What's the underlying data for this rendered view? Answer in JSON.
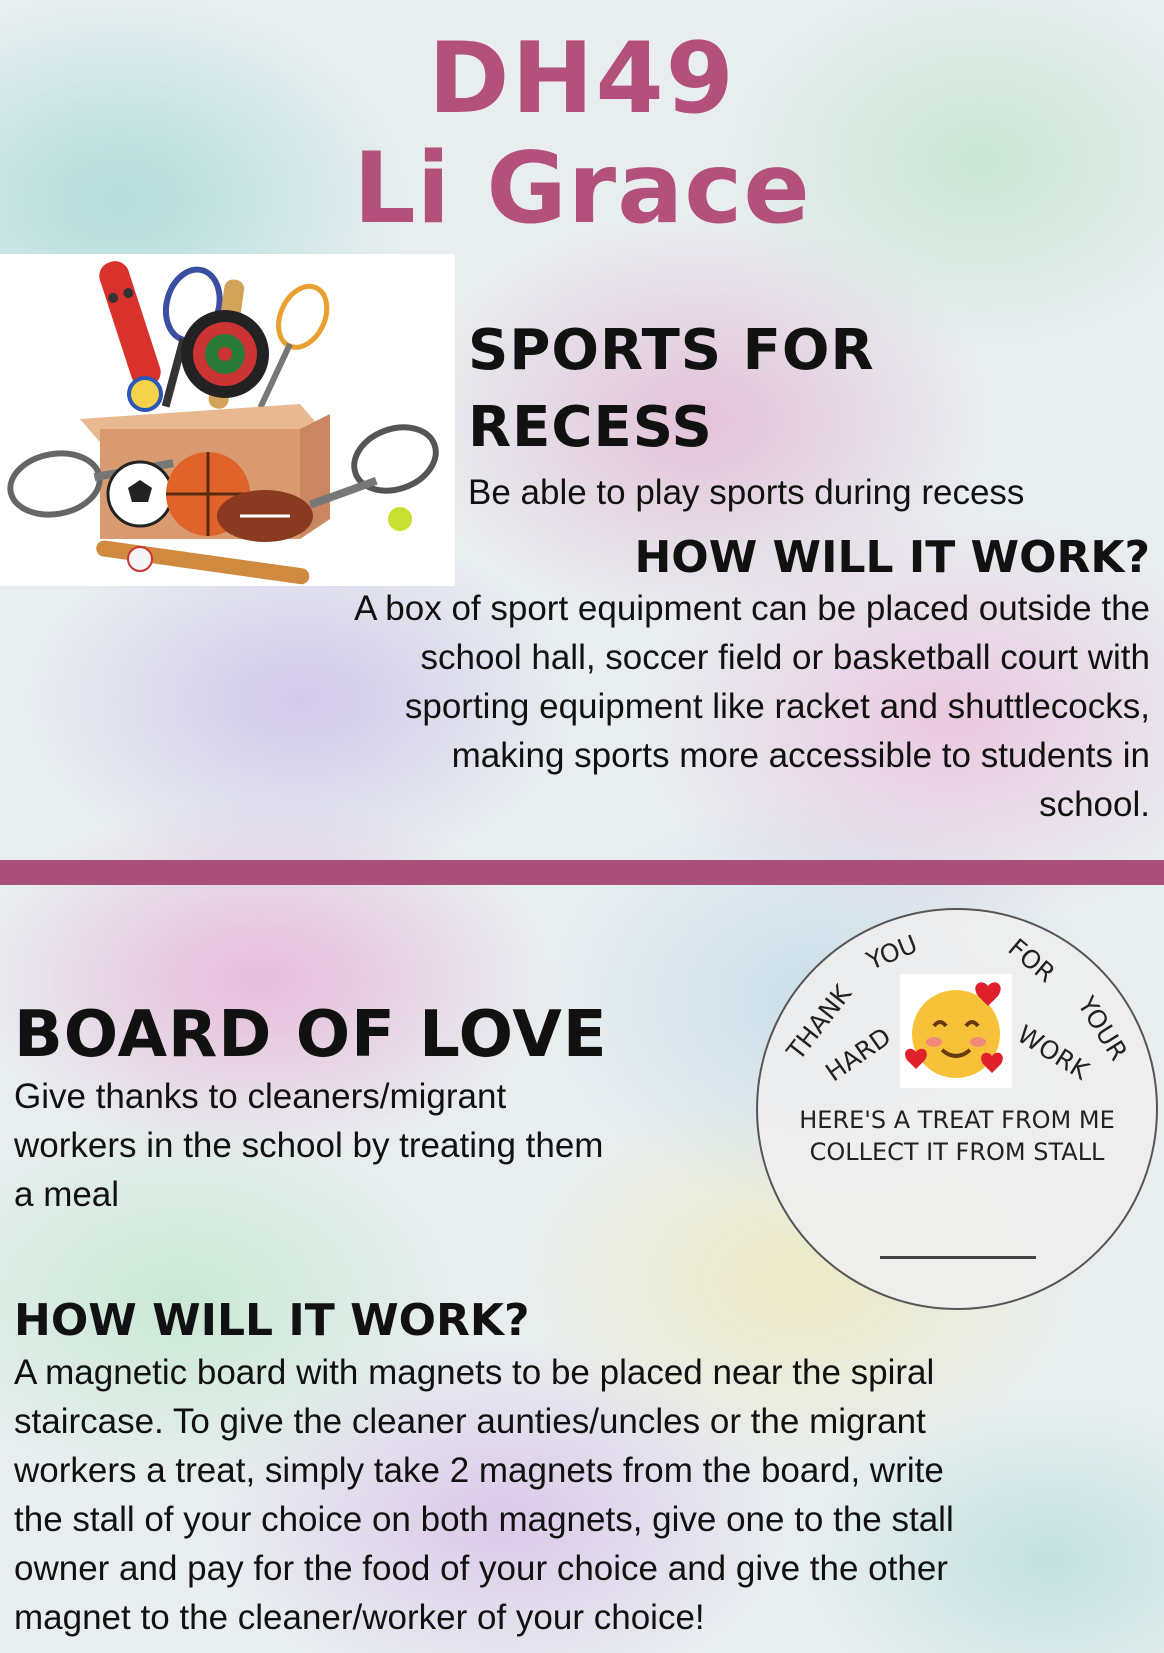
{
  "header": {
    "code": "DH49",
    "name": "Li Grace"
  },
  "sports": {
    "heading_line1": "SPORTS FOR",
    "heading_line2": "RECESS",
    "tagline": "Be able to play sports during recess",
    "how_heading": "HOW WILL IT WORK?",
    "how_lines": [
      "A box of sport equipment can be placed outside the",
      "school hall, soccer field or basketball court with",
      "sporting equipment like racket and shuttlecocks,",
      "making sports more accessible to students in",
      "school."
    ]
  },
  "love": {
    "heading": "BOARD OF LOVE",
    "desc_lines": [
      "Give thanks to cleaners/migrant",
      "workers in the school by treating them",
      "a meal"
    ],
    "how_heading": "HOW WILL IT WORK?",
    "how_lines": [
      "A magnetic board with magnets to be placed near the spiral",
      "staircase. To give the cleaner aunties/uncles or the migrant",
      "workers a treat, simply take 2 magnets from the board, write",
      "the stall of your choice on both magnets, give one to the stall",
      "owner and pay for the food of your choice and give the other",
      "magnet to the cleaner/worker of your choice!"
    ]
  },
  "badge": {
    "words": [
      "THANK",
      "YOU",
      "FOR",
      "YOUR",
      "HARD",
      "WORK"
    ],
    "line1": "HERE'S A TREAT FROM ME",
    "line2": "COLLECT IT FROM STALL"
  },
  "colors": {
    "title": "#b4507c",
    "divider": "#a9507a"
  }
}
